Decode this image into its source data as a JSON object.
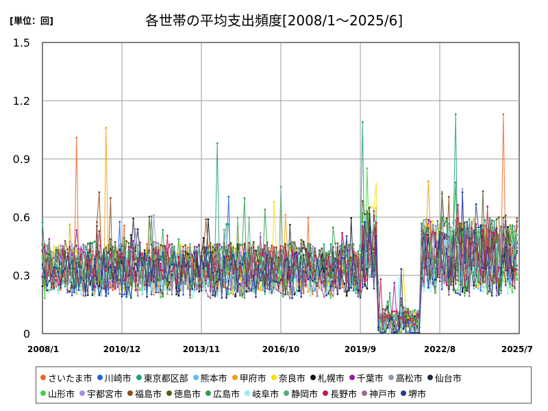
{
  "unit_label": "[単位：回]",
  "title": "各世帯の平均支出頻度[2008/1～2025/6]",
  "chart_data": {
    "type": "line",
    "title": "各世帯の平均支出頻度[2008/1～2025/6]",
    "unit": "[単位：回]",
    "ylim": [
      0,
      1.5
    ],
    "yticks": [
      "0",
      "0.3",
      "0.6",
      "0.9",
      "1.2",
      "1.5"
    ],
    "yticks_values": [
      0,
      0.3,
      0.6,
      0.9,
      1.2,
      1.5
    ],
    "xticks": [
      "2008/1",
      "2010/12",
      "2013/11",
      "2016/10",
      "2019/9",
      "2022/8",
      "2025/7"
    ],
    "x_range": [
      "2008/1",
      "2025/7"
    ],
    "grid": true,
    "legend_position": "bottom",
    "series": [
      {
        "name": "さいたま市",
        "color": "#f26522"
      },
      {
        "name": "川崎市",
        "color": "#1f62e0"
      },
      {
        "name": "東京都区部",
        "color": "#1aa37a"
      },
      {
        "name": "熊本市",
        "color": "#5bc0e8"
      },
      {
        "name": "甲府市",
        "color": "#f5a00f"
      },
      {
        "name": "奈良市",
        "color": "#f5e00a"
      },
      {
        "name": "札幌市",
        "color": "#111111"
      },
      {
        "name": "千葉市",
        "color": "#9b1aa0"
      },
      {
        "name": "高松市",
        "color": "#8c9aa8"
      },
      {
        "name": "仙台市",
        "color": "#1c2a40"
      },
      {
        "name": "山形市",
        "color": "#3fd63f"
      },
      {
        "name": "宇都宮市",
        "color": "#a88ee0"
      },
      {
        "name": "福島市",
        "color": "#8b4a1e"
      },
      {
        "name": "徳島市",
        "color": "#5a5a1a"
      },
      {
        "name": "広島市",
        "color": "#2e9e4a"
      },
      {
        "name": "岐阜市",
        "color": "#8ef0f5"
      },
      {
        "name": "静岡市",
        "color": "#5aa878"
      },
      {
        "name": "長野市",
        "color": "#c8145a"
      },
      {
        "name": "神戸市",
        "color": "#9a6a8a"
      },
      {
        "name": "堺市",
        "color": "#1e3aa0"
      }
    ],
    "trend": {
      "segments": [
        {
          "from": "2008/1",
          "to": "2019/9",
          "baseline": 0.33,
          "spread": 0.12
        },
        {
          "from": "2019/9",
          "to": "2020/4",
          "baseline": 0.45,
          "spread": 0.2
        },
        {
          "from": "2020/4",
          "to": "2021/11",
          "baseline": 0.06,
          "spread": 0.05
        },
        {
          "from": "2021/11",
          "to": "2025/6",
          "baseline": 0.4,
          "spread": 0.18
        }
      ],
      "peaks": [
        {
          "x": "2009/4",
          "y": 1.01,
          "series": "さいたま市"
        },
        {
          "x": "2010/5",
          "y": 1.06,
          "series": "甲府市"
        },
        {
          "x": "2014/6",
          "y": 0.98,
          "series": "東京都区部"
        },
        {
          "x": "2019/10",
          "y": 1.09,
          "series": "東京都区部"
        },
        {
          "x": "2023/3",
          "y": 1.13,
          "series": "東京都区部"
        },
        {
          "x": "2024/12",
          "y": 1.13,
          "series": "さいたま市"
        }
      ]
    }
  }
}
